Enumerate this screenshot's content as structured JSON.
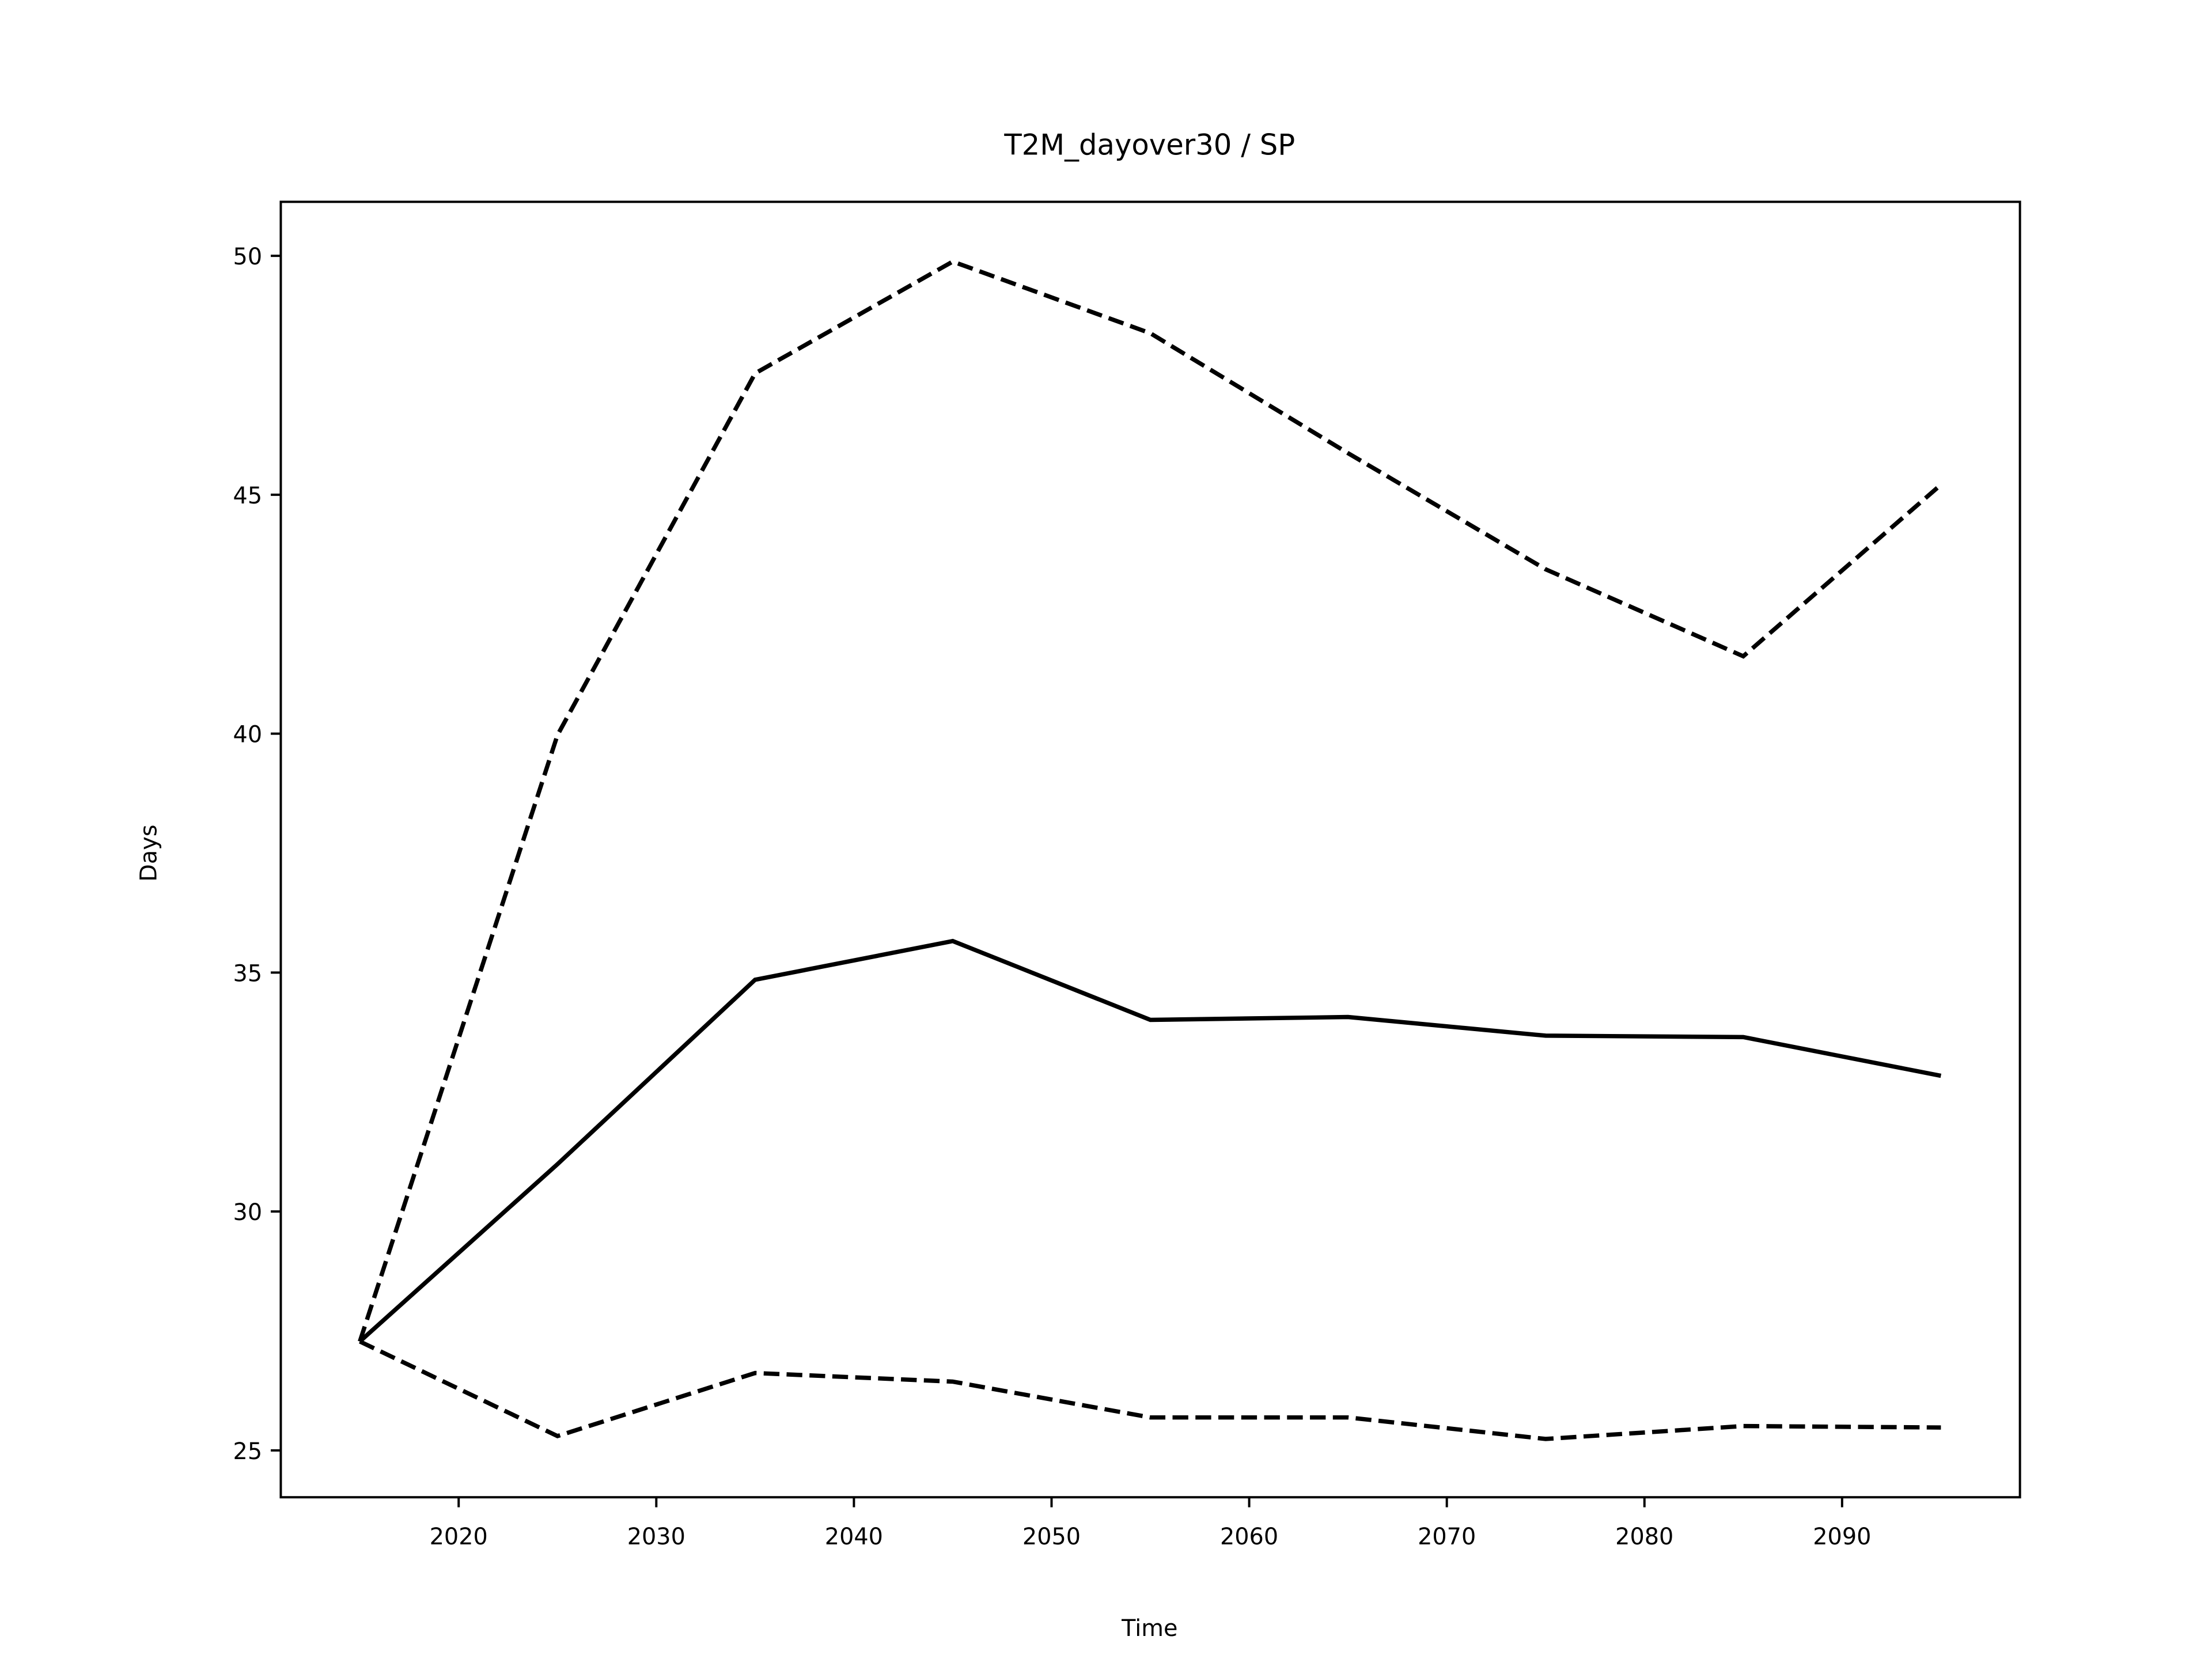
{
  "chart_data": {
    "type": "line",
    "title": "T2M_dayover30 / SP",
    "xlabel": "Time",
    "ylabel": "Days",
    "x": [
      2015,
      2025,
      2035,
      2045,
      2055,
      2065,
      2075,
      2085,
      2095
    ],
    "series": [
      {
        "color": "#000000",
        "linestyle": "solid",
        "values": [
          27.28,
          30.99,
          34.85,
          35.66,
          34.01,
          34.07,
          33.68,
          33.65,
          32.84
        ]
      },
      {
        "color": "#000000",
        "linestyle": "dashed",
        "values": [
          27.28,
          39.97,
          47.54,
          49.88,
          48.38,
          45.87,
          43.44,
          41.62,
          45.21
        ]
      },
      {
        "color": "#000000",
        "linestyle": "dashed",
        "values": [
          27.28,
          25.3,
          26.62,
          26.44,
          25.69,
          25.69,
          25.24,
          25.51,
          25.48
        ]
      }
    ],
    "xlim": [
      2011,
      2099
    ],
    "ylim": [
      24.02,
      51.13
    ],
    "xticks": [
      2020,
      2030,
      2040,
      2050,
      2060,
      2070,
      2080,
      2090
    ],
    "yticks": [
      25,
      30,
      35,
      40,
      45,
      50
    ],
    "grid": false
  }
}
